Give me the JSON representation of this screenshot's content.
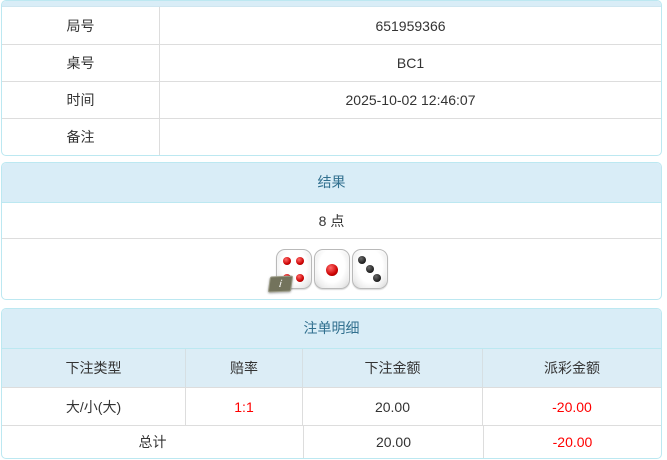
{
  "info": {
    "rows": [
      {
        "label": "局号",
        "value": "651959366"
      },
      {
        "label": "桌号",
        "value": "BC1"
      },
      {
        "label": "时间",
        "value": "2025-10-02 12:46:07"
      },
      {
        "label": "备注",
        "value": ""
      }
    ]
  },
  "result": {
    "title": "结果",
    "points": "8 点",
    "dice": [
      {
        "value": 4,
        "color": "red"
      },
      {
        "value": 1,
        "color": "red"
      },
      {
        "value": 3,
        "color": "black"
      }
    ],
    "info_icon_glyph": "i"
  },
  "bets": {
    "title": "注单明细",
    "columns": [
      "下注类型",
      "赔率",
      "下注金额",
      "派彩金额"
    ],
    "rows": [
      {
        "type": "大/小(大)",
        "odds": "1:1",
        "bet": "20.00",
        "payout": "-20.00"
      }
    ],
    "total": {
      "label": "总计",
      "bet": "20.00",
      "payout": "-20.00"
    }
  },
  "colors": {
    "panel_border": "#bce8f1",
    "heading_bg": "#d9edf7",
    "heading_text": "#31708f",
    "row_border": "#dddddd",
    "text": "#333333",
    "negative": "#ff0000"
  }
}
